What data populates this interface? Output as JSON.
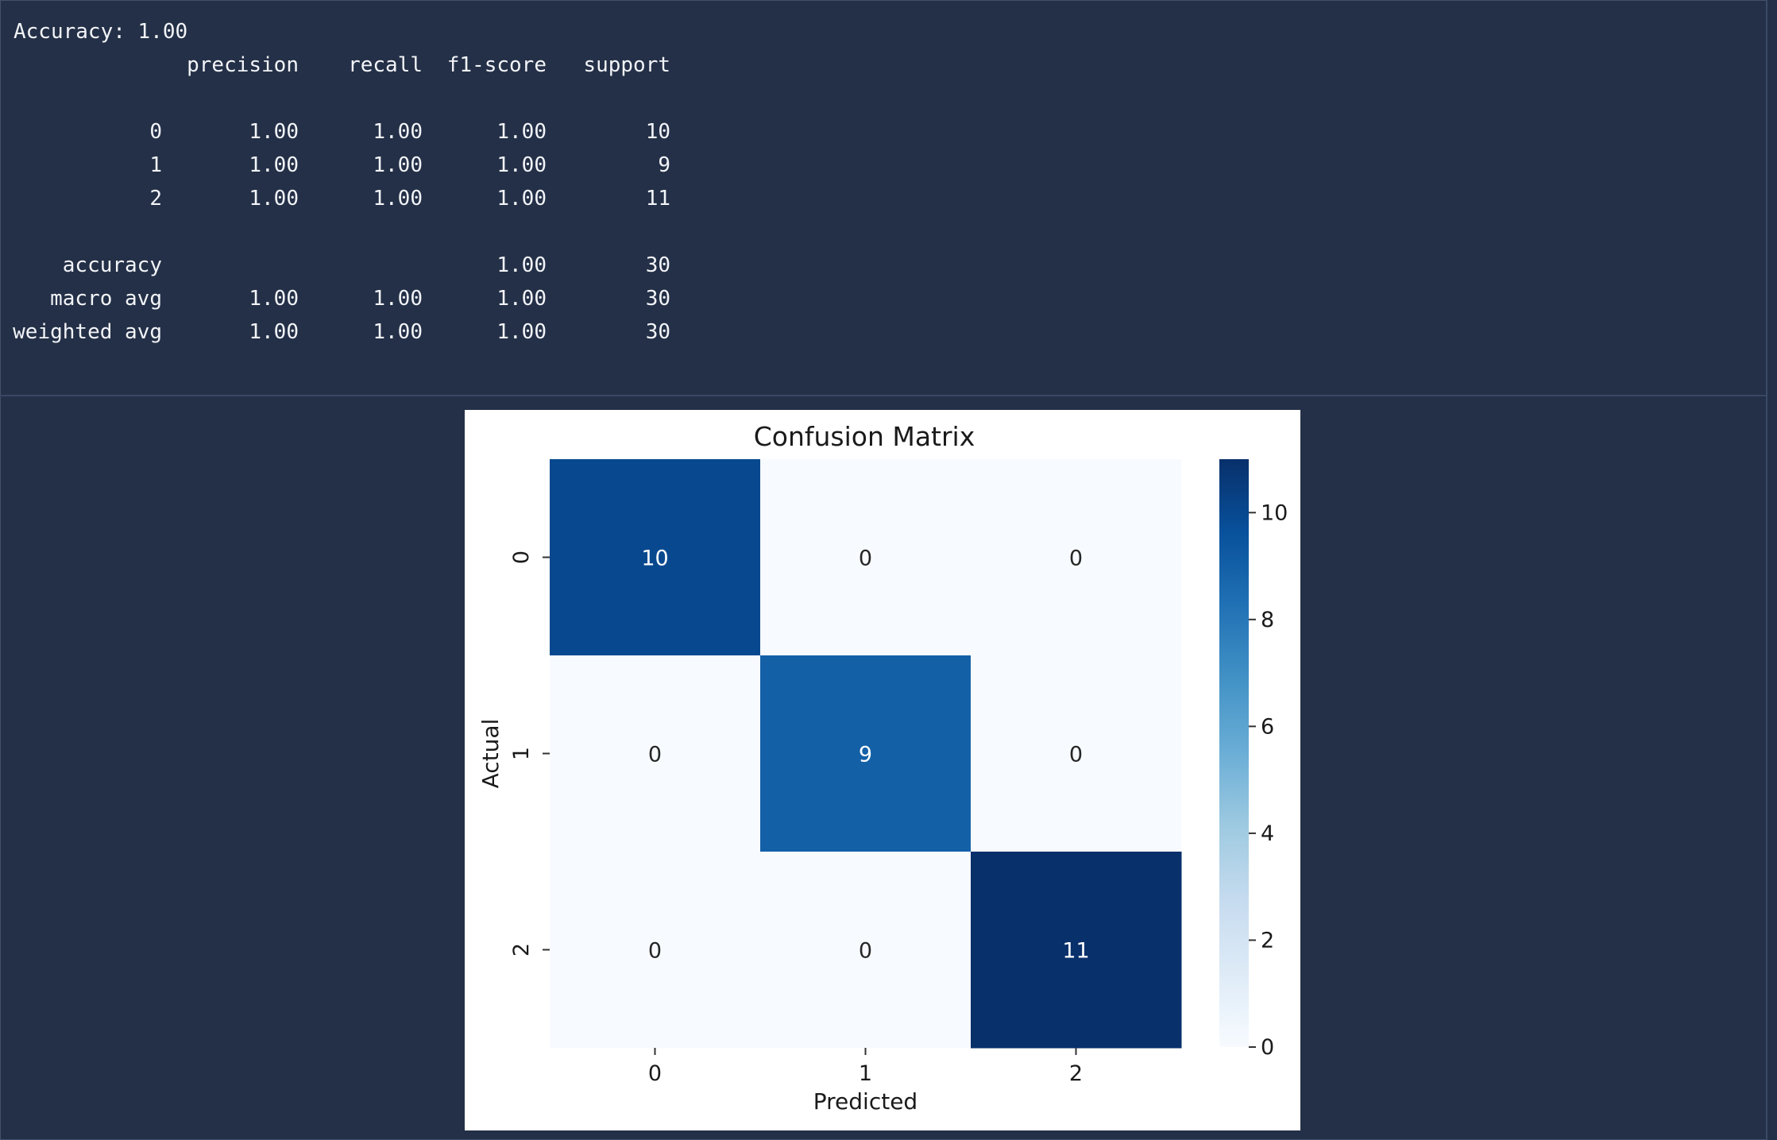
{
  "console": {
    "accuracy_line": "Accuracy: 1.00",
    "report": {
      "headers": [
        "precision",
        "recall",
        "f1-score",
        "support"
      ],
      "rows": [
        {
          "label": "0",
          "precision": "1.00",
          "recall": "1.00",
          "f1": "1.00",
          "support": "10"
        },
        {
          "label": "1",
          "precision": "1.00",
          "recall": "1.00",
          "f1": "1.00",
          "support": "9"
        },
        {
          "label": "2",
          "precision": "1.00",
          "recall": "1.00",
          "f1": "1.00",
          "support": "11"
        },
        {
          "label": "accuracy",
          "precision": "",
          "recall": "",
          "f1": "1.00",
          "support": "30"
        },
        {
          "label": "macro avg",
          "precision": "1.00",
          "recall": "1.00",
          "f1": "1.00",
          "support": "30"
        },
        {
          "label": "weighted avg",
          "precision": "1.00",
          "recall": "1.00",
          "f1": "1.00",
          "support": "30"
        }
      ]
    }
  },
  "chart_data": {
    "type": "heatmap",
    "title": "Confusion Matrix",
    "xlabel": "Predicted",
    "ylabel": "Actual",
    "x_categories": [
      "0",
      "1",
      "2"
    ],
    "y_categories": [
      "0",
      "1",
      "2"
    ],
    "values": [
      [
        10,
        0,
        0
      ],
      [
        0,
        9,
        0
      ],
      [
        0,
        0,
        11
      ]
    ],
    "colorbar": {
      "ticks": [
        0,
        2,
        4,
        6,
        8,
        10
      ],
      "range": [
        0,
        11
      ],
      "colormap": "Blues",
      "color_low": "#f7fbff",
      "color_high": "#08306b"
    },
    "annotation_colors": {
      "light_text": "#ffffff",
      "dark_text": "#262626"
    }
  },
  "theme": {
    "background": "#243047",
    "console_text": "#f2f4f8",
    "figure_background": "#ffffff"
  }
}
